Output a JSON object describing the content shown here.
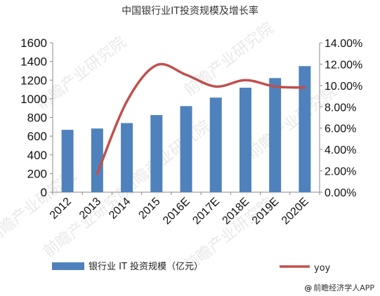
{
  "title": "中国银行业IT投资规模及增长率",
  "source": {
    "prefix": "@",
    "name": "前瞻经济学人APP"
  },
  "watermark": "前瞻产业研究院",
  "colors": {
    "bar": "#4f81bd",
    "line": "#c0504d"
  },
  "chart_data": {
    "type": "bar",
    "categories": [
      "2012",
      "2013",
      "2014",
      "2015",
      "2016E",
      "2017E",
      "2018E",
      "2019E",
      "2020E"
    ],
    "series": [
      {
        "name": "银行业 IT 投资规模（亿元）",
        "type": "bar",
        "axis": "left",
        "values": [
          668,
          682,
          740,
          826,
          922,
          1013,
          1119,
          1222,
          1350
        ]
      },
      {
        "name": "yoy",
        "type": "line",
        "smooth": true,
        "axis": "right",
        "values": [
          null,
          1.7,
          8.5,
          11.9,
          11.0,
          9.9,
          10.5,
          9.9,
          9.8
        ]
      }
    ],
    "y_left": {
      "ylim": [
        0,
        1600
      ],
      "ticks": [
        "0",
        "200",
        "400",
        "600",
        "800",
        "1000",
        "1200",
        "1400",
        "1600"
      ]
    },
    "y_right": {
      "ylim": [
        0,
        14
      ],
      "ticks": [
        "0.00%",
        "2.00%",
        "4.00%",
        "6.00%",
        "8.00%",
        "10.00%",
        "12.00%",
        "14.00%"
      ]
    },
    "grid": false,
    "legend": "bottom"
  }
}
